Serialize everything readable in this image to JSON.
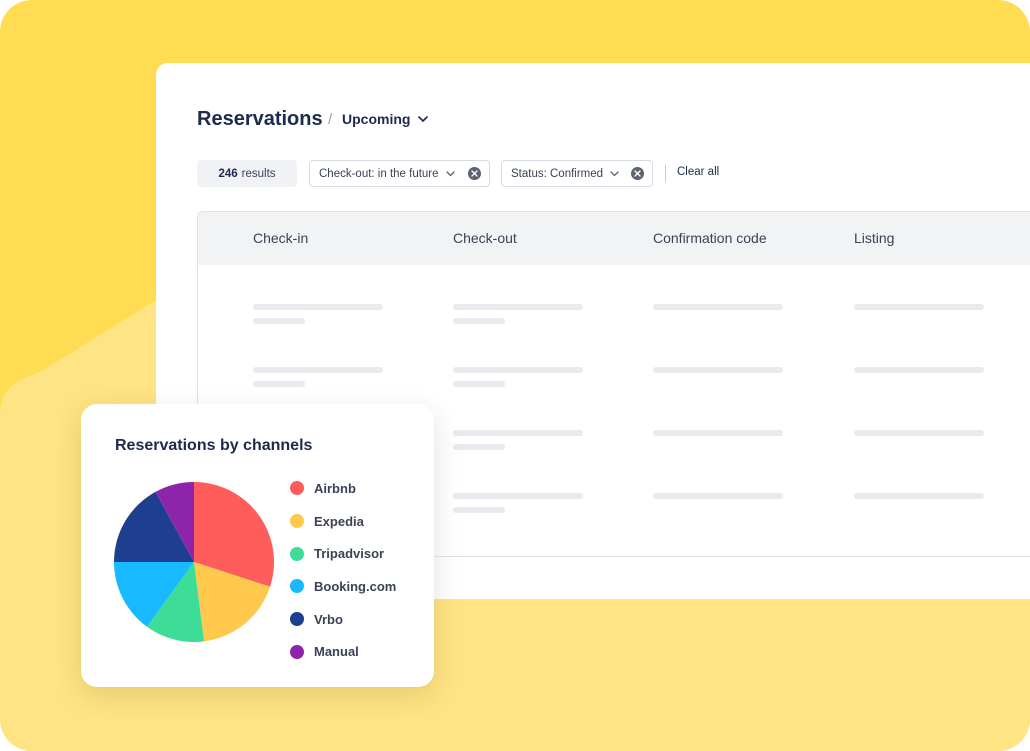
{
  "header": {
    "title": "Reservations",
    "separator": "/",
    "view_label": "Upcoming"
  },
  "filters": {
    "results_count": "246",
    "results_label": "results",
    "chips": [
      {
        "label": "Check-out: in the future"
      },
      {
        "label": "Status: Confirmed"
      }
    ],
    "clear_all": "Clear all"
  },
  "table": {
    "columns": [
      "Check-in",
      "Check-out",
      "Confirmation code",
      "Listing"
    ],
    "loading_rows": 4
  },
  "chart_data": {
    "type": "pie",
    "title": "Reservations by channels",
    "legend_position": "right",
    "categories": [
      "Airbnb",
      "Expedia",
      "Tripadvisor",
      "Booking.com",
      "Vrbo",
      "Manual"
    ],
    "values": [
      30,
      18,
      12,
      15,
      17,
      8
    ],
    "colors": [
      "#ff5c5c",
      "#ffc94d",
      "#3ddc97",
      "#18b9ff",
      "#1e3f8f",
      "#8e24aa"
    ]
  },
  "colors": {
    "background_yellow": "#ffdc52",
    "background_light": "#ffe483",
    "navy_text": "#1d2a4d"
  }
}
